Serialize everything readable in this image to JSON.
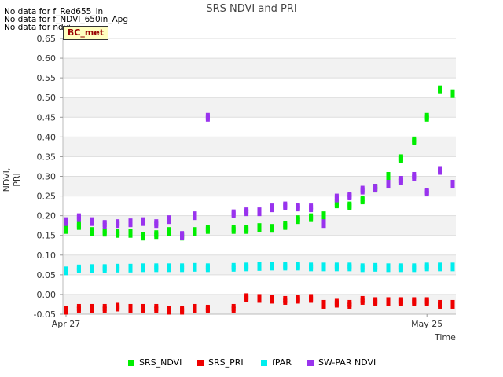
{
  "notes": [
    "No data for f_Red655_in",
    "No data for f_NDVI_650in_Apg",
    "No data for ndvi"
  ],
  "badge": "BC_met",
  "chart_data": {
    "type": "scatter",
    "title": "SRS NDVI and PRI",
    "xlabel": "Time",
    "ylabel": "NDVI, PRI",
    "ylim": [
      -0.05,
      0.65
    ],
    "yticks": [
      "-0.05",
      "0.00",
      "0.05",
      "0.10",
      "0.15",
      "0.20",
      "0.25",
      "0.30",
      "0.35",
      "0.40",
      "0.45",
      "0.50",
      "0.55",
      "0.60",
      "0.65"
    ],
    "xlim": [
      0,
      30
    ],
    "xticks": [
      {
        "label": "Apr 27",
        "value": 0
      },
      {
        "label": "May 25",
        "value": 28
      }
    ],
    "grid": true,
    "legend_position": "bottom",
    "days": [
      0,
      1,
      2,
      3,
      4,
      5,
      6,
      7,
      8,
      9,
      10,
      11,
      13,
      14,
      15,
      16,
      17,
      18,
      19,
      20,
      21,
      22,
      23,
      24,
      25,
      26,
      27,
      28,
      29,
      30
    ],
    "series": [
      {
        "name": "SRS_NDVI",
        "color": "#00ee00",
        "values": [
          0.165,
          0.175,
          0.16,
          0.158,
          0.155,
          0.155,
          0.148,
          0.152,
          0.16,
          0.148,
          0.16,
          0.165,
          0.165,
          0.165,
          0.17,
          0.168,
          0.175,
          0.19,
          0.195,
          0.2,
          0.23,
          0.225,
          0.24,
          0.27,
          0.3,
          0.345,
          0.39,
          0.45,
          0.52,
          0.51
        ]
      },
      {
        "name": "SRS_PRI",
        "color": "#ee0000",
        "values": [
          -0.04,
          -0.035,
          -0.035,
          -0.035,
          -0.032,
          -0.035,
          -0.035,
          -0.035,
          -0.04,
          -0.04,
          -0.035,
          -0.037,
          -0.035,
          -0.008,
          -0.01,
          -0.012,
          -0.015,
          -0.012,
          -0.01,
          -0.025,
          -0.022,
          -0.025,
          -0.015,
          -0.018,
          -0.018,
          -0.018,
          -0.018,
          -0.018,
          -0.025,
          -0.025
        ]
      },
      {
        "name": "fPAR",
        "color": "#00eeee",
        "values": [
          0.06,
          0.065,
          0.066,
          0.066,
          0.067,
          0.067,
          0.068,
          0.068,
          0.068,
          0.068,
          0.069,
          0.068,
          0.069,
          0.07,
          0.071,
          0.072,
          0.072,
          0.072,
          0.07,
          0.07,
          0.07,
          0.07,
          0.068,
          0.069,
          0.068,
          0.068,
          0.068,
          0.07,
          0.07,
          0.07
        ]
      },
      {
        "name": "SW-PAR NDVI",
        "color": "#9933ee",
        "values": [
          0.185,
          0.195,
          0.185,
          0.178,
          0.18,
          0.182,
          0.185,
          0.18,
          0.19,
          0.15,
          0.2,
          0.45,
          0.205,
          0.21,
          0.21,
          0.22,
          0.225,
          0.222,
          0.22,
          0.18,
          0.245,
          0.25,
          0.265,
          0.27,
          0.28,
          0.29,
          0.3,
          0.26,
          0.315,
          0.28
        ]
      }
    ]
  }
}
